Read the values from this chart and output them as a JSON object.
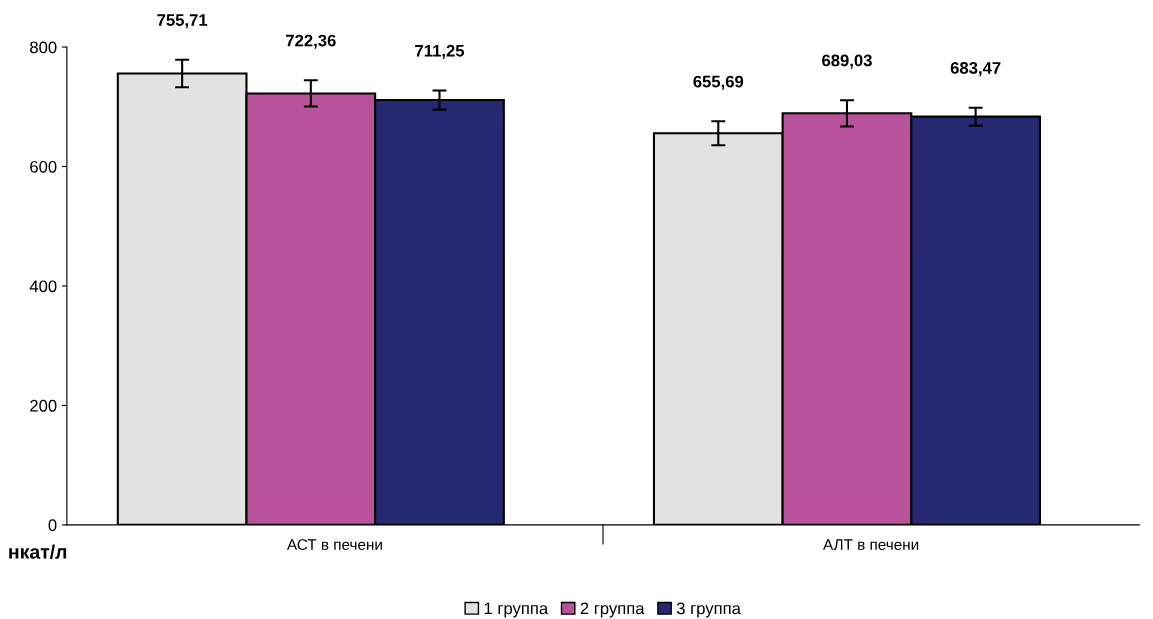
{
  "chart_data": {
    "type": "bar",
    "categories": [
      "АСТ в печени",
      "АЛТ в печени"
    ],
    "ylabel": "нкат/л",
    "series": [
      {
        "name": "1 группа",
        "color": "#e1e3e2",
        "values": [
          755.71,
          655.69
        ],
        "errors": [
          23,
          20
        ],
        "value_labels": [
          "755,71",
          "655,69"
        ]
      },
      {
        "name": "2 группа",
        "color": "#b8529b",
        "values": [
          722.36,
          689.03
        ],
        "errors": [
          22,
          22
        ],
        "value_labels": [
          "722,36",
          "689,03"
        ]
      },
      {
        "name": "3 группа",
        "color": "#262872",
        "values": [
          711.25,
          683.47
        ],
        "errors": [
          16,
          15
        ],
        "value_labels": [
          "711,25",
          "683,47"
        ]
      }
    ],
    "ylim": [
      0,
      800
    ],
    "yticks": [
      0,
      200,
      400,
      600,
      800
    ],
    "grid": false,
    "legend": "bottom"
  }
}
